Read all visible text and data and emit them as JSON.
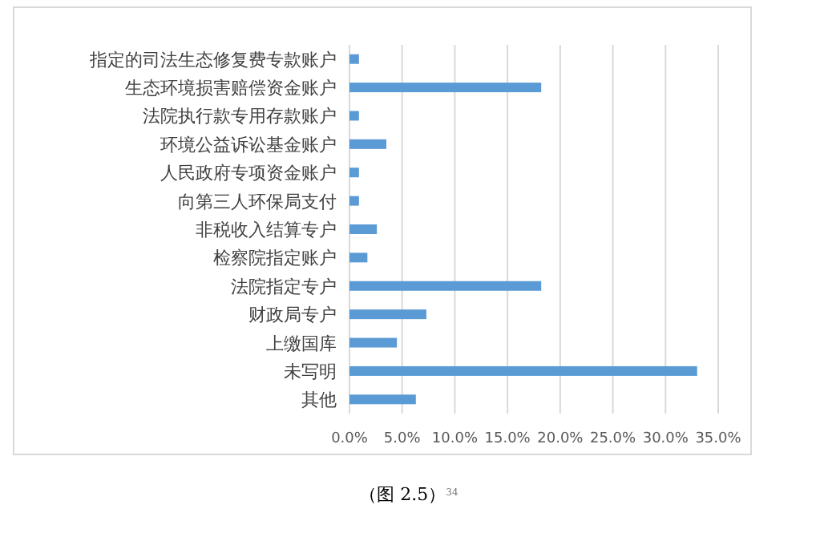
{
  "chart_data": {
    "type": "bar",
    "orientation": "horizontal",
    "categories": [
      "指定的司法生态修复费专款账户",
      "生态环境损害赔偿资金账户",
      "法院执行款专用存款账户",
      "环境公益诉讼基金账户",
      "人民政府专项资金账户",
      "向第三人环保局支付",
      "非税收入结算专户",
      "检察院指定账户",
      "法院指定专户",
      "财政局专户",
      "上缴国库",
      "未写明",
      "其他"
    ],
    "values": [
      0.9,
      18.2,
      0.9,
      3.5,
      0.9,
      0.9,
      2.6,
      1.7,
      18.2,
      7.3,
      4.5,
      33.0,
      6.3
    ],
    "color": "#5b9bd5",
    "xlim": [
      0,
      35
    ],
    "xticks": [
      {
        "value": 0,
        "label": "0.0%"
      },
      {
        "value": 5,
        "label": "5.0%"
      },
      {
        "value": 10,
        "label": "10.0%"
      },
      {
        "value": 15,
        "label": "15.0%"
      },
      {
        "value": 20,
        "label": "20.0%"
      },
      {
        "value": 25,
        "label": "25.0%"
      },
      {
        "value": 30,
        "label": "30.0%"
      },
      {
        "value": 35,
        "label": "35.0%"
      }
    ],
    "grid": "x",
    "annotations": [
      "（图 2.5）$^{34}$"
    ]
  }
}
